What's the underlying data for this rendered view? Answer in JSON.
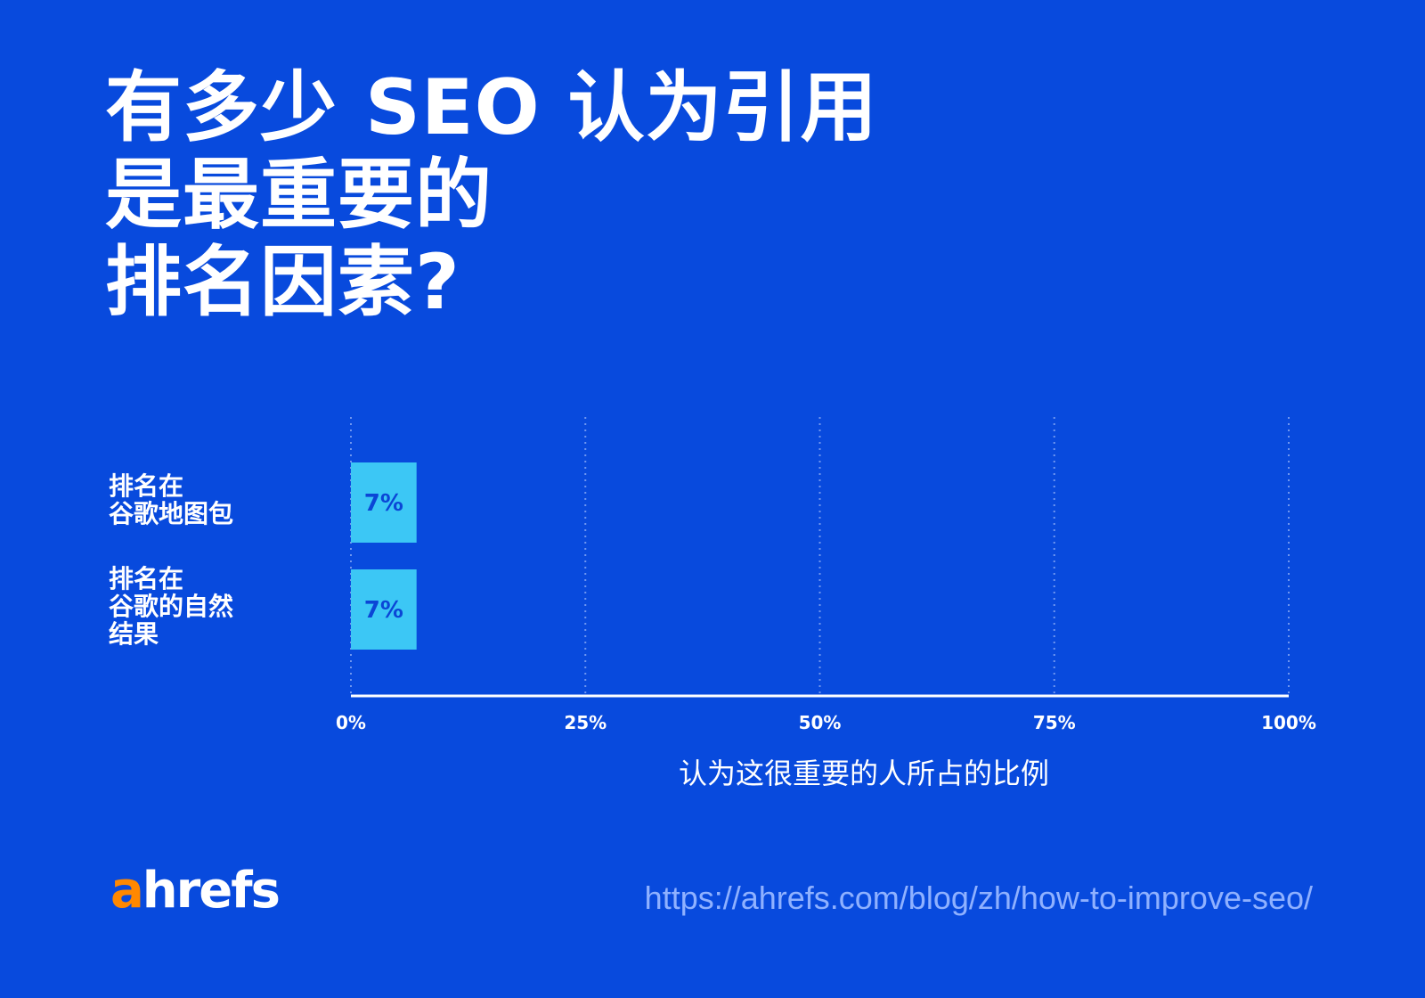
{
  "title": {
    "lines": [
      "有多少 SEO 认为引用",
      "是最重要的",
      "排名因素?"
    ]
  },
  "chart_data": {
    "type": "bar",
    "orientation": "horizontal",
    "categories": [
      [
        "排名在",
        "谷歌地图包"
      ],
      [
        "排名在",
        "谷歌的自然",
        "结果"
      ]
    ],
    "values": [
      7,
      7
    ],
    "data_labels": [
      "7%",
      "7%"
    ],
    "xlabel": "认为这很重要的人所占的比例",
    "xlim": [
      0,
      100
    ],
    "ticks": [
      0,
      25,
      50,
      75,
      100
    ],
    "tick_labels": [
      "0%",
      "25%",
      "50%",
      "75%",
      "100%"
    ],
    "grid": "vertical-dotted",
    "legend": "none",
    "colors": {
      "background": "#084ADD",
      "bar": "#3CC7F5",
      "bar_label": "#0B46D6",
      "grid": "#6F96F0",
      "axis": "#ffffff"
    }
  },
  "footer": {
    "logo_a": "a",
    "logo_rest": "hrefs",
    "url": "https://ahrefs.com/blog/zh/how-to-improve-seo/"
  }
}
